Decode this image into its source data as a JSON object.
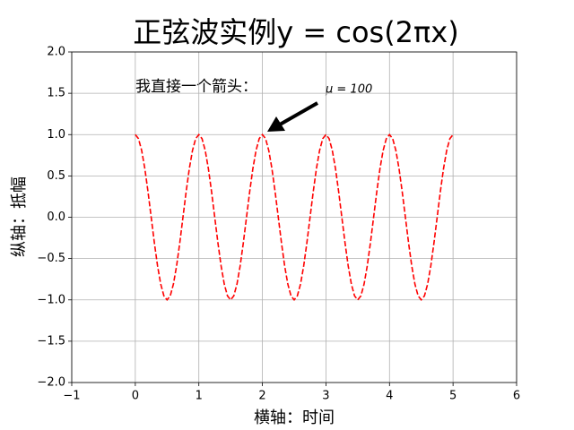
{
  "chart_data": {
    "type": "line",
    "title": "正弦波实例y = cos(2πx)",
    "x_label": "横轴：时间",
    "y_label": "纵轴：抵幅",
    "annotations": [
      "我直接一个箭头：",
      "μ = 100"
    ],
    "x": [
      0,
      0.05,
      0.1,
      0.15,
      0.2,
      0.25,
      0.3,
      0.35,
      0.4,
      0.45,
      0.5,
      0.55,
      0.6,
      0.65,
      0.7,
      0.75,
      0.8,
      0.85,
      0.9,
      0.95,
      1,
      1.05,
      1.1,
      1.15,
      1.2,
      1.25,
      1.3,
      1.35,
      1.4,
      1.45,
      1.5,
      1.55,
      1.6,
      1.65,
      1.7,
      1.75,
      1.8,
      1.85,
      1.9,
      1.95,
      2,
      2.05,
      2.1,
      2.15,
      2.2,
      2.25,
      2.3,
      2.35,
      2.4,
      2.45,
      2.5,
      2.55,
      2.6,
      2.65,
      2.7,
      2.75,
      2.8,
      2.85,
      2.9,
      2.95,
      3,
      3.05,
      3.1,
      3.15,
      3.2,
      3.25,
      3.3,
      3.35,
      3.4,
      3.45,
      3.5,
      3.55,
      3.6,
      3.65,
      3.7,
      3.75,
      3.8,
      3.85,
      3.9,
      3.95,
      4,
      4.05,
      4.1,
      4.15,
      4.2,
      4.25,
      4.3,
      4.35,
      4.4,
      4.45,
      4.5,
      4.55,
      4.6,
      4.65,
      4.7,
      4.75,
      4.8,
      4.85,
      4.9,
      4.95,
      5
    ],
    "values": [
      1,
      0.951,
      0.809,
      0.588,
      0.309,
      0,
      -0.309,
      -0.588,
      -0.809,
      -0.951,
      -1,
      -0.951,
      -0.809,
      -0.588,
      -0.309,
      0,
      0.309,
      0.588,
      0.809,
      0.951,
      1,
      0.951,
      0.809,
      0.588,
      0.309,
      0,
      -0.309,
      -0.588,
      -0.809,
      -0.951,
      -1,
      -0.951,
      -0.809,
      -0.588,
      -0.309,
      0,
      0.309,
      0.588,
      0.809,
      0.951,
      1,
      0.951,
      0.809,
      0.588,
      0.309,
      0,
      -0.309,
      -0.588,
      -0.809,
      -0.951,
      -1,
      -0.951,
      -0.809,
      -0.588,
      -0.309,
      0,
      0.309,
      0.588,
      0.809,
      0.951,
      1,
      0.951,
      0.809,
      0.588,
      0.309,
      0,
      -0.309,
      -0.588,
      -0.809,
      -0.951,
      -1,
      -0.951,
      -0.809,
      -0.588,
      -0.309,
      0,
      0.309,
      0.588,
      0.809,
      0.951,
      1,
      0.951,
      0.809,
      0.588,
      0.309,
      0,
      -0.309,
      -0.588,
      -0.809,
      -0.951,
      -1,
      -0.951,
      -0.809,
      -0.588,
      -0.309,
      0,
      0.309,
      0.588,
      0.809,
      0.951,
      1
    ],
    "color": "#ff0000",
    "line_style": "dashed",
    "x_label_color": "#008000",
    "xlim": [
      -1,
      6
    ],
    "xticks": [
      {
        "value": -1,
        "label": "−1"
      },
      0,
      1,
      2,
      3,
      4,
      5,
      6
    ],
    "ylim": [
      -2,
      2
    ],
    "yticks": [
      {
        "value": -2,
        "label": "−2.0"
      },
      {
        "value": -1.5,
        "label": "−1.5"
      },
      {
        "value": -1,
        "label": "−1.0"
      },
      {
        "value": -0.5,
        "label": "−0.5"
      },
      {
        "value": 0,
        "label": "0.0"
      },
      0.5,
      {
        "value": 1,
        "label": "1.0"
      },
      1.5,
      {
        "value": 2,
        "label": "2.0"
      }
    ],
    "grid": true
  }
}
